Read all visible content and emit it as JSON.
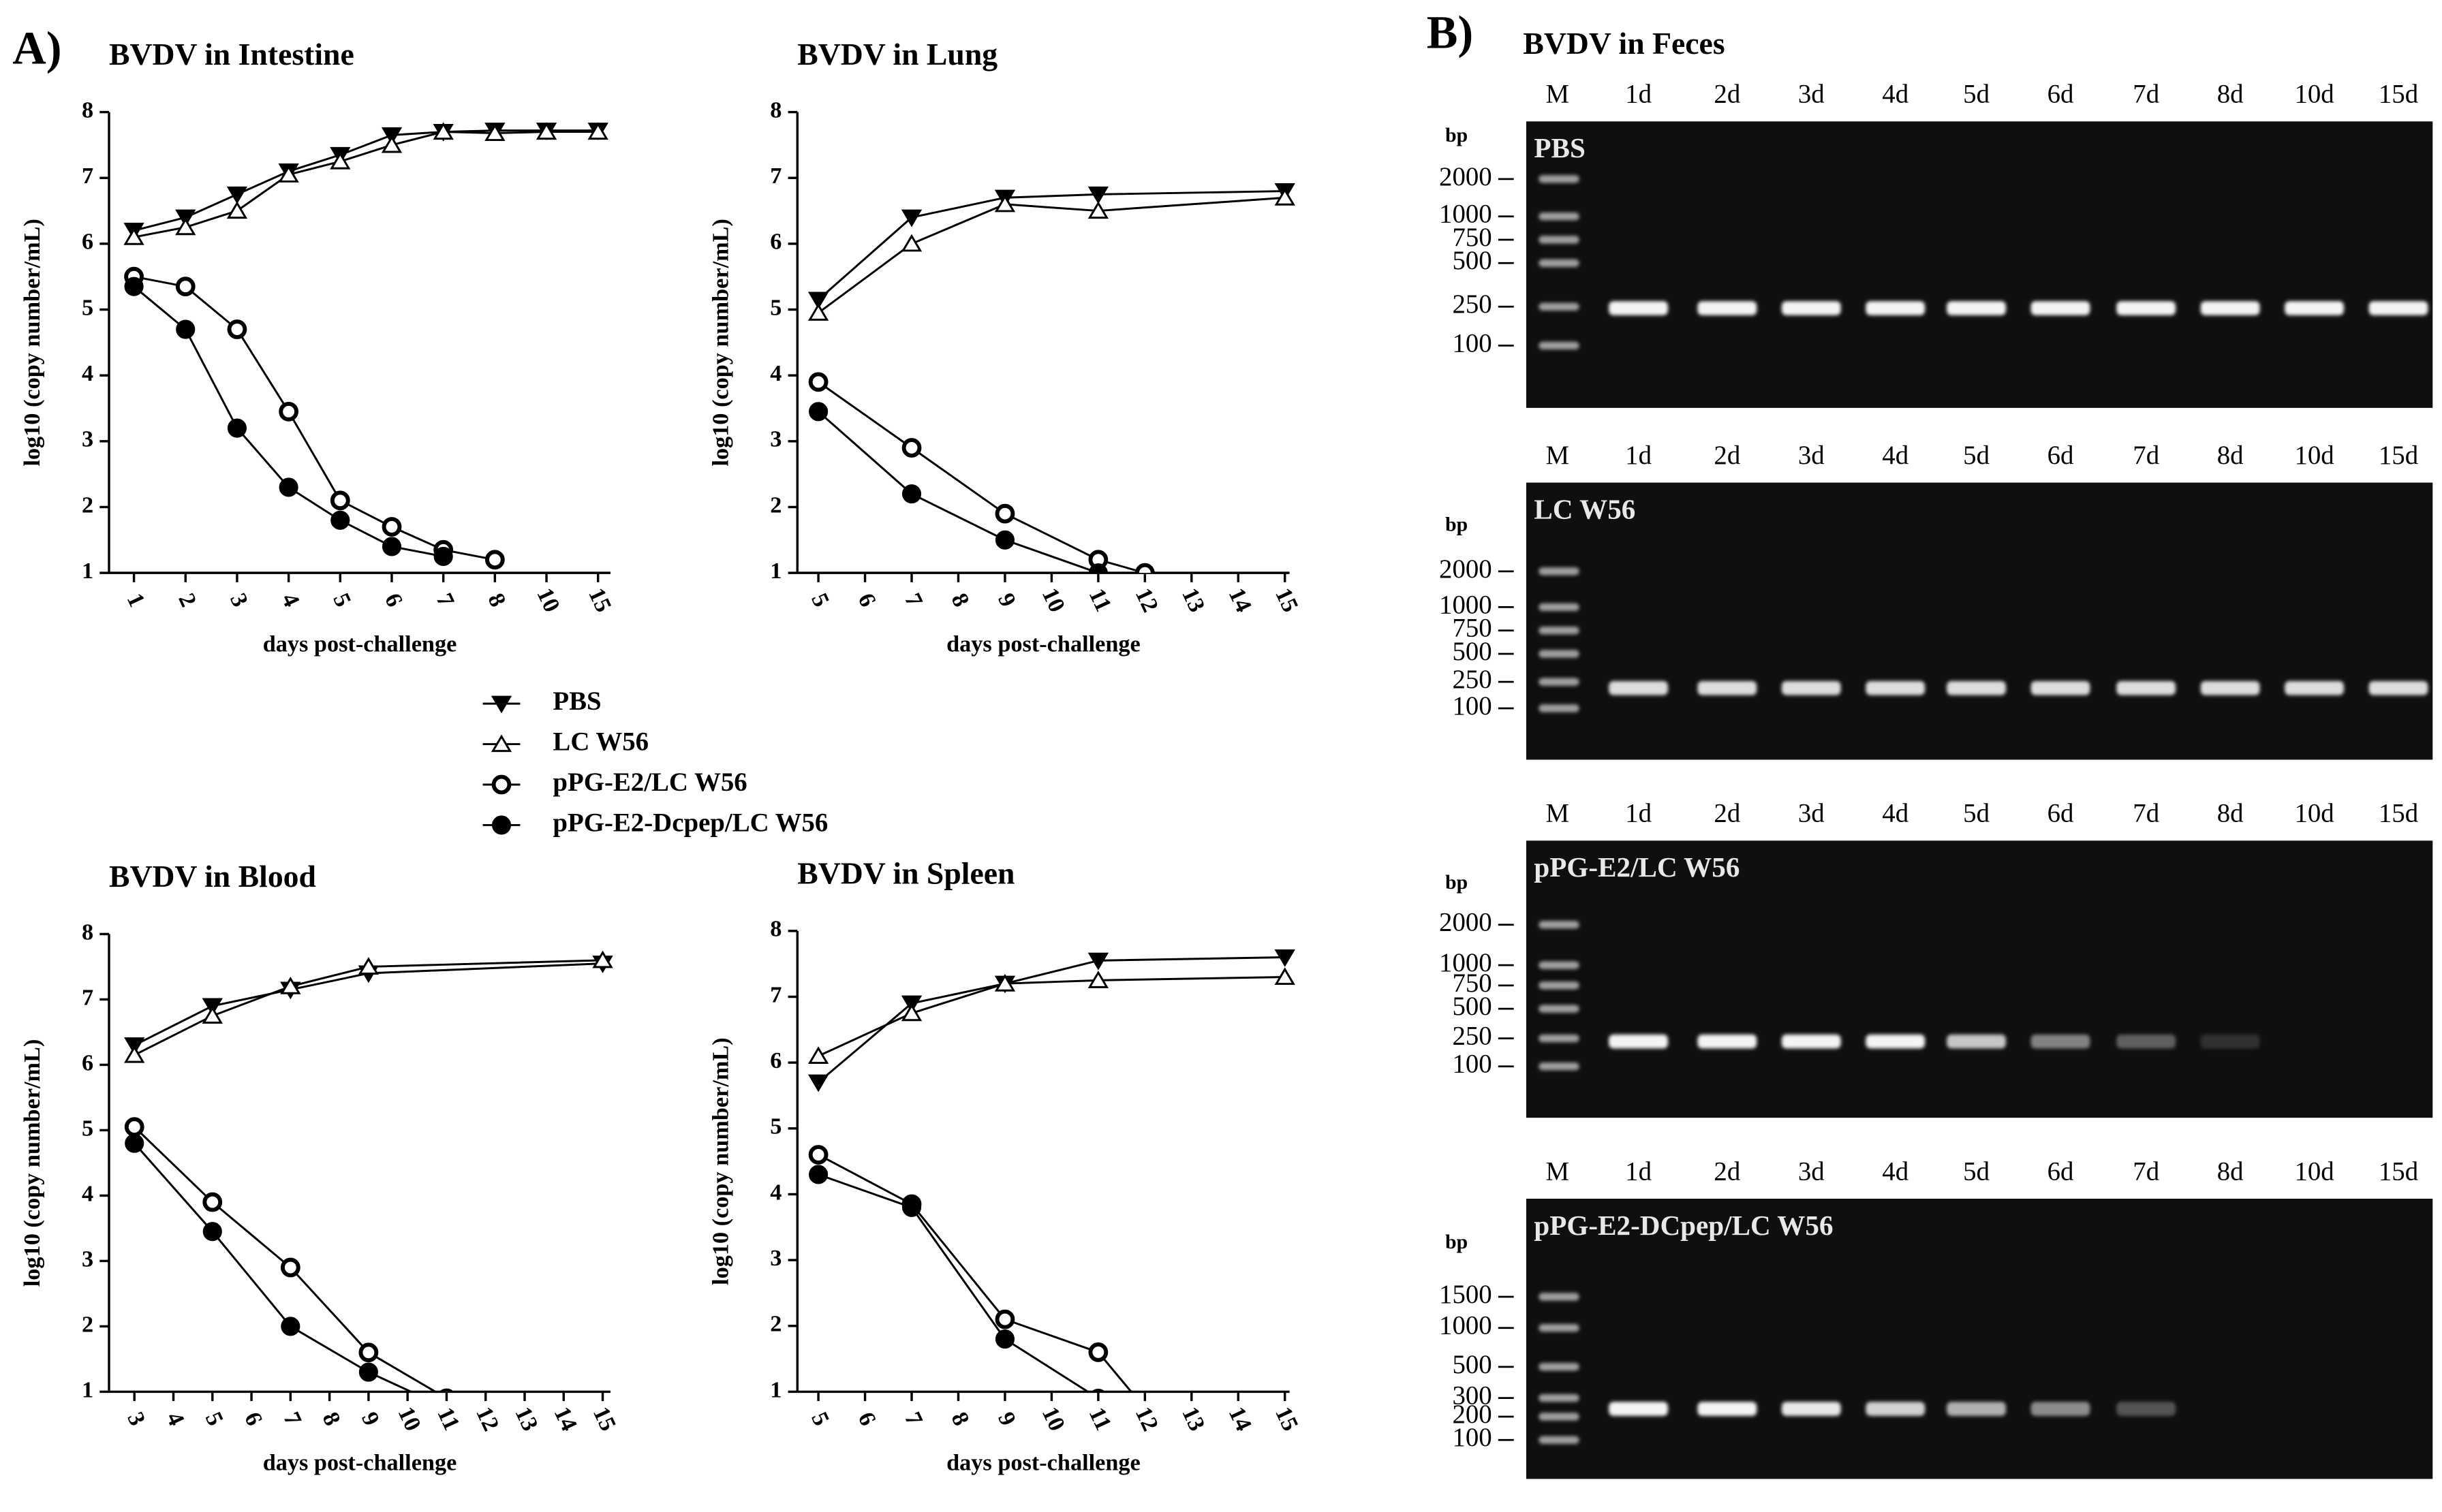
{
  "panel_a": "A)",
  "chart_data": [
    {
      "type": "line",
      "title": "BVDV in Intestine",
      "x_label": "days post-challenge",
      "y_label": "log10 (copy number/mL)",
      "categories": [
        "1",
        "2",
        "3",
        "4",
        "5",
        "6",
        "7",
        "8",
        "10",
        "15"
      ],
      "ylim": [
        1,
        8
      ],
      "yticks": [
        1,
        2,
        3,
        4,
        5,
        6,
        7,
        8
      ],
      "series": [
        {
          "name": "PBS",
          "marker": "triangle-down-filled",
          "color": "#000000",
          "values": [
            6.2,
            6.4,
            6.75,
            7.1,
            7.35,
            7.65,
            7.7,
            7.72,
            7.72,
            7.72
          ]
        },
        {
          "name": "LC W56",
          "marker": "triangle-up-open",
          "color": "#000000",
          "values": [
            6.1,
            6.25,
            6.5,
            7.05,
            7.25,
            7.5,
            7.7,
            7.68,
            7.7,
            7.7
          ]
        },
        {
          "name": "pPG-E2/LC W56",
          "marker": "circle-open",
          "color": "#000000",
          "values": [
            5.5,
            5.35,
            4.7,
            3.45,
            2.1,
            1.7,
            1.35,
            1.2,
            null,
            null
          ]
        },
        {
          "name": "pPG-E2-Dcpep/LC W56",
          "marker": "circle-filled",
          "color": "#000000",
          "values": [
            5.35,
            4.7,
            3.2,
            2.3,
            1.8,
            1.4,
            1.25,
            null,
            null,
            null
          ]
        }
      ]
    },
    {
      "type": "line",
      "title": "BVDV in Lung",
      "x_label": "days post-challenge",
      "y_label": "log10 (copy number/mL)",
      "xlim": [
        4.55,
        15.1
      ],
      "xticks": [
        5,
        6,
        7,
        8,
        9,
        10,
        11,
        12,
        13,
        14,
        15
      ],
      "ylim": [
        1,
        8
      ],
      "yticks": [
        1,
        2,
        3,
        4,
        5,
        6,
        7,
        8
      ],
      "series": [
        {
          "marker": "triangle-down-filled",
          "color": "#000000",
          "x": [
            5,
            7,
            9,
            11,
            15
          ],
          "values": [
            5.15,
            6.4,
            6.7,
            6.75,
            6.8
          ]
        },
        {
          "marker": "triangle-up-open",
          "color": "#000000",
          "x": [
            5,
            7,
            9,
            11,
            15
          ],
          "values": [
            4.95,
            6.0,
            6.6,
            6.5,
            6.7
          ]
        },
        {
          "marker": "circle-open",
          "color": "#000000",
          "x": [
            5,
            7,
            9,
            11,
            12
          ],
          "values": [
            3.9,
            2.9,
            1.9,
            1.2,
            1.0
          ]
        },
        {
          "marker": "circle-filled",
          "color": "#000000",
          "x": [
            5,
            7,
            9,
            11
          ],
          "values": [
            3.45,
            2.2,
            1.5,
            1.0
          ]
        }
      ]
    },
    {
      "type": "line",
      "title": "BVDV in Blood",
      "x_label": "days post-challenge",
      "y_label": "log10 (copy number/mL)",
      "xlim": [
        2.35,
        15.2
      ],
      "xticks": [
        3,
        4,
        5,
        6,
        7,
        8,
        9,
        10,
        11,
        12,
        13,
        14,
        15
      ],
      "ylim": [
        1,
        8
      ],
      "yticks": [
        1,
        2,
        3,
        4,
        5,
        6,
        7,
        8
      ],
      "series": [
        {
          "marker": "triangle-down-filled",
          "color": "#000000",
          "x": [
            3,
            5,
            7,
            9,
            15
          ],
          "values": [
            6.3,
            6.9,
            7.15,
            7.4,
            7.55
          ]
        },
        {
          "marker": "triangle-up-open",
          "color": "#000000",
          "x": [
            3,
            5,
            7,
            9,
            15
          ],
          "values": [
            6.15,
            6.75,
            7.2,
            7.5,
            7.6
          ]
        },
        {
          "marker": "circle-open",
          "color": "#000000",
          "x": [
            3,
            5,
            7,
            9,
            11
          ],
          "values": [
            5.05,
            3.9,
            2.9,
            1.6,
            0.9
          ]
        },
        {
          "marker": "circle-filled",
          "color": "#000000",
          "x": [
            3,
            5,
            7,
            9,
            11
          ],
          "values": [
            4.8,
            3.45,
            2.0,
            1.3,
            0.75
          ]
        }
      ]
    },
    {
      "type": "line",
      "title": "BVDV in Spleen",
      "x_label": "days post-challenge",
      "y_label": "log10 (copy number/mL)",
      "xlim": [
        4.55,
        15.1
      ],
      "xticks": [
        5,
        6,
        7,
        8,
        9,
        10,
        11,
        12,
        13,
        14,
        15
      ],
      "ylim": [
        1,
        8
      ],
      "yticks": [
        1,
        2,
        3,
        4,
        5,
        6,
        7,
        8
      ],
      "series": [
        {
          "marker": "triangle-down-filled",
          "color": "#000000",
          "x": [
            5,
            7,
            9,
            11,
            15
          ],
          "values": [
            5.7,
            6.9,
            7.2,
            7.55,
            7.6
          ]
        },
        {
          "marker": "triangle-up-open",
          "color": "#000000",
          "x": [
            5,
            7,
            9,
            11,
            15
          ],
          "values": [
            6.1,
            6.75,
            7.2,
            7.25,
            7.3
          ]
        },
        {
          "marker": "circle-open",
          "color": "#000000",
          "x": [
            5,
            7,
            9,
            11,
            12
          ],
          "values": [
            4.6,
            3.85,
            2.1,
            1.6,
            0.75
          ]
        },
        {
          "marker": "circle-filled",
          "color": "#000000",
          "x": [
            5,
            7,
            9,
            11
          ],
          "values": [
            4.3,
            3.8,
            1.8,
            0.9
          ]
        }
      ]
    }
  ],
  "gel": {
    "panel_label": "B)",
    "title": "BVDV in Feces",
    "panels": [
      {
        "sample": "PBS",
        "bp_label": "bp",
        "lanes": [
          "M",
          "1d",
          "2d",
          "3d",
          "4d",
          "5d",
          "6d",
          "7d",
          "8d",
          "10d",
          "15d"
        ],
        "ladder": [
          "2000",
          "1000",
          "750",
          "500",
          "250",
          "100"
        ],
        "band_intensity": [
          1,
          1,
          1,
          1,
          1,
          1,
          1,
          1,
          1,
          1
        ]
      },
      {
        "sample": "LC W56",
        "bp_label": "bp",
        "lanes": [
          "M",
          "1d",
          "2d",
          "3d",
          "4d",
          "5d",
          "6d",
          "7d",
          "8d",
          "10d",
          "15d"
        ],
        "ladder": [
          "2000",
          "1000",
          "750",
          "500",
          "250",
          "100"
        ],
        "band_intensity": [
          0.9,
          0.9,
          0.9,
          0.9,
          0.9,
          0.9,
          0.9,
          0.9,
          0.9,
          0.9
        ]
      },
      {
        "sample": "pPG-E2/LC W56",
        "bp_label": "bp",
        "lanes": [
          "M",
          "1d",
          "2d",
          "3d",
          "4d",
          "5d",
          "6d",
          "7d",
          "8d",
          "10d",
          "15d"
        ],
        "ladder": [
          "2000",
          "1000",
          "750",
          "500",
          "250",
          "100"
        ],
        "band_intensity": [
          1,
          1,
          1,
          1,
          0.8,
          0.5,
          0.35,
          0.15,
          0,
          0
        ]
      },
      {
        "sample": "pPG-E2-DCpep/LC W56",
        "bp_label": "bp",
        "lanes": [
          "M",
          "1d",
          "2d",
          "3d",
          "4d",
          "5d",
          "6d",
          "7d",
          "8d",
          "10d",
          "15d"
        ],
        "ladder": [
          "1500",
          "1000",
          "500",
          "300",
          "200",
          "100"
        ],
        "band_intensity": [
          1,
          1,
          0.95,
          0.85,
          0.7,
          0.55,
          0.3,
          0,
          0,
          0
        ]
      }
    ]
  }
}
